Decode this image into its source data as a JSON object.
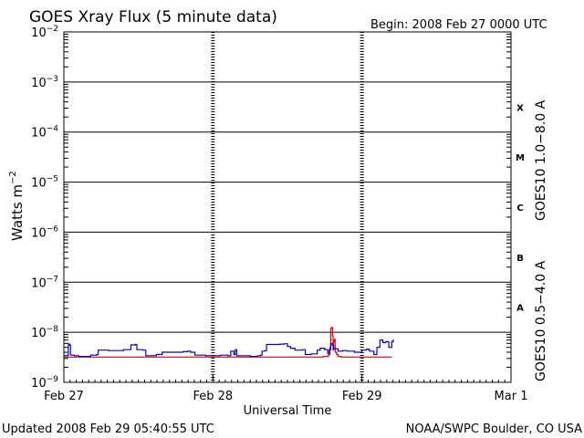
{
  "chart_data": {
    "type": "line",
    "title": "GOES Xray Flux (5 minute data)",
    "begin_label": "Begin:  2008 Feb 27 0000 UTC",
    "ylabel_main": "Watts m",
    "ylabel_exp": "−2",
    "xlabel": "Universal Time",
    "y_scale": "log",
    "ylim": [
      1e-09,
      0.01
    ],
    "y_ticks": [
      {
        "base": "10",
        "exp": "−2"
      },
      {
        "base": "10",
        "exp": "−3"
      },
      {
        "base": "10",
        "exp": "−4"
      },
      {
        "base": "10",
        "exp": "−5"
      },
      {
        "base": "10",
        "exp": "−6"
      },
      {
        "base": "10",
        "exp": "−7"
      },
      {
        "base": "10",
        "exp": "−8"
      },
      {
        "base": "10",
        "exp": "−9"
      }
    ],
    "x_unit": "days since 2008 Feb 27 0000 UTC",
    "xlim": [
      0,
      3
    ],
    "x_ticks": [
      "Feb 27",
      "Feb 28",
      "Feb 29",
      "Mar 1"
    ],
    "flare_classes": [
      "X",
      "M",
      "C",
      "B",
      "A"
    ],
    "series": [
      {
        "name": "GOES10 1.0−8.0 A",
        "color": "#e00000",
        "points": [
          [
            0.0,
            3.2e-09
          ],
          [
            0.22,
            3.2e-09
          ],
          [
            0.5,
            3.2e-09
          ],
          [
            0.8,
            3.2e-09
          ],
          [
            1.2,
            3.2e-09
          ],
          [
            1.6,
            3.2e-09
          ],
          [
            1.74,
            3.3e-09
          ],
          [
            1.775,
            3.6e-09
          ],
          [
            1.785,
            5e-09
          ],
          [
            1.79,
            1.2e-08
          ],
          [
            1.797,
            1.25e-08
          ],
          [
            1.803,
            8.5e-09
          ],
          [
            1.806,
            4.4e-09
          ],
          [
            1.81,
            6.5e-09
          ],
          [
            1.815,
            7.2e-09
          ],
          [
            1.82,
            4e-09
          ],
          [
            1.83,
            3.6e-09
          ],
          [
            1.84,
            3.3e-09
          ],
          [
            1.86,
            3.2e-09
          ],
          [
            2.1,
            3.2e-09
          ],
          [
            2.2,
            3.2e-09
          ]
        ]
      },
      {
        "name": "GOES10 0.5−4.0 A",
        "color": "#0000e0",
        "points": [
          [
            0.0,
            3.4e-09
          ],
          [
            0.025,
            3.5e-09
          ],
          [
            0.03,
            5.8e-09
          ],
          [
            0.04,
            5.5e-09
          ],
          [
            0.045,
            3.5e-09
          ],
          [
            0.07,
            3.4e-09
          ],
          [
            0.1,
            3.3e-09
          ],
          [
            0.15,
            3.3e-09
          ],
          [
            0.18,
            3.5e-09
          ],
          [
            0.22,
            3.6e-09
          ],
          [
            0.23,
            4.4e-09
          ],
          [
            0.3,
            4.3e-09
          ],
          [
            0.4,
            4.5e-09
          ],
          [
            0.44,
            4.5e-09
          ],
          [
            0.45,
            5.6e-09
          ],
          [
            0.48,
            5.7e-09
          ],
          [
            0.49,
            4.5e-09
          ],
          [
            0.53,
            4.4e-09
          ],
          [
            0.55,
            3.4e-09
          ],
          [
            0.6,
            3.4e-09
          ],
          [
            0.62,
            3.6e-09
          ],
          [
            0.66,
            4e-09
          ],
          [
            0.7,
            4e-09
          ],
          [
            0.8,
            4.1e-09
          ],
          [
            0.83,
            4.2e-09
          ],
          [
            0.85,
            4e-09
          ],
          [
            0.88,
            3.5e-09
          ],
          [
            0.95,
            3.4e-09
          ],
          [
            1.0,
            3.4e-09
          ],
          [
            1.05,
            3.5e-09
          ],
          [
            1.1,
            3.4e-09
          ],
          [
            1.12,
            4.2e-09
          ],
          [
            1.14,
            3.6e-09
          ],
          [
            1.15,
            4.5e-09
          ],
          [
            1.16,
            3.4e-09
          ],
          [
            1.2,
            3.4e-09
          ],
          [
            1.25,
            3.3e-09
          ],
          [
            1.3,
            3.4e-09
          ],
          [
            1.32,
            3.5e-09
          ],
          [
            1.33,
            4.2e-09
          ],
          [
            1.35,
            4.3e-09
          ],
          [
            1.36,
            5.7e-09
          ],
          [
            1.45,
            5.8e-09
          ],
          [
            1.48,
            5.9e-09
          ],
          [
            1.5,
            5.2e-09
          ],
          [
            1.52,
            4.8e-09
          ],
          [
            1.55,
            4.4e-09
          ],
          [
            1.6,
            4.5e-09
          ],
          [
            1.62,
            3.6e-09
          ],
          [
            1.66,
            3.7e-09
          ],
          [
            1.7,
            4.4e-09
          ],
          [
            1.72,
            4.8e-09
          ],
          [
            1.75,
            4.5e-09
          ],
          [
            1.77,
            3.8e-09
          ],
          [
            1.78,
            4.5e-09
          ],
          [
            1.79,
            6e-09
          ],
          [
            1.8,
            5.5e-09
          ],
          [
            1.81,
            4.7e-09
          ],
          [
            1.84,
            4.2e-09
          ],
          [
            1.87,
            4.3e-09
          ],
          [
            1.9,
            4.2e-09
          ],
          [
            1.95,
            4e-09
          ],
          [
            2.0,
            4.4e-09
          ],
          [
            2.03,
            4.6e-09
          ],
          [
            2.05,
            4.2e-09
          ],
          [
            2.08,
            3.6e-09
          ],
          [
            2.1,
            5e-09
          ],
          [
            2.12,
            7e-09
          ],
          [
            2.14,
            6.2e-09
          ],
          [
            2.16,
            6.5e-09
          ],
          [
            2.18,
            5e-09
          ],
          [
            2.2,
            6.5e-09
          ],
          [
            2.21,
            7.2e-09
          ]
        ]
      }
    ]
  },
  "footer": {
    "updated": "Updated 2008 Feb 29 05:40:55 UTC",
    "credit": "NOAA/SWPC Boulder, CO USA"
  }
}
